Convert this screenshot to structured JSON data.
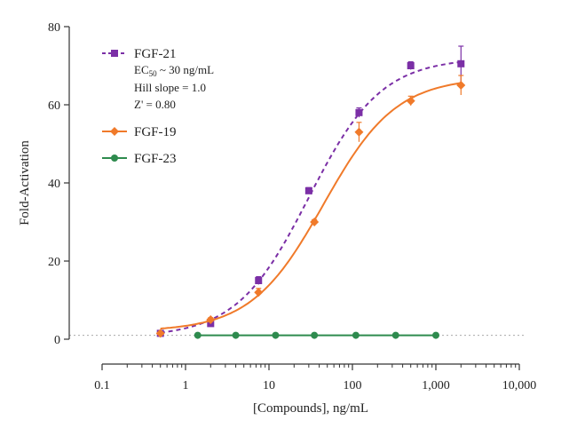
{
  "chart_data": {
    "type": "scatter",
    "xlabel": "[Compounds], ng/mL",
    "ylabel": "Fold-Activation",
    "xscale": "log",
    "xlim": [
      0.1,
      10000
    ],
    "ylim": [
      0,
      80
    ],
    "x_ticks": [
      0.1,
      1,
      10,
      100,
      1000,
      10000
    ],
    "x_tick_labels": [
      "0.1",
      "1",
      "10",
      "100",
      "1,000",
      "10,000"
    ],
    "y_ticks": [
      0,
      20,
      40,
      60,
      80
    ],
    "y_tick_labels": [
      "0",
      "20",
      "40",
      "60",
      "80"
    ],
    "grid": false,
    "baseline": 1,
    "legend_position": "top-left",
    "series": [
      {
        "name": "FGF-21",
        "color": "#7b2fa6",
        "marker": "square",
        "line_style": "dashed",
        "x": [
          0.5,
          2,
          7.5,
          30,
          120,
          500,
          2000
        ],
        "y": [
          1.5,
          4,
          15,
          38,
          58,
          70,
          70.5
        ],
        "err": [
          0,
          0,
          1,
          0.8,
          1.2,
          1,
          4.5
        ],
        "fit": {
          "bottom": 0.5,
          "top": 72,
          "ec50": 30,
          "hill": 1.0
        },
        "annotations": {
          "ec50_prefix": "EC",
          "ec50_sub": "50",
          "ec50_suffix": " ~ 30 ng/mL",
          "hill": "Hill slope = 1.0",
          "z": "Z' = 0.80"
        }
      },
      {
        "name": "FGF-19",
        "color": "#f07a2a",
        "marker": "diamond",
        "line_style": "solid",
        "x": [
          0.5,
          2,
          7.5,
          35,
          120,
          500,
          2000
        ],
        "y": [
          1.5,
          5,
          12,
          30,
          53,
          61,
          65
        ],
        "err": [
          0,
          0.5,
          1,
          0.6,
          2.5,
          1.2,
          2.5
        ],
        "fit": {
          "bottom": 2,
          "top": 67,
          "ec50": 45,
          "hill": 1.0
        }
      },
      {
        "name": "FGF-23",
        "color": "#2e8b4e",
        "marker": "circle",
        "line_style": "solid",
        "x": [
          1.4,
          4,
          12,
          35,
          110,
          330,
          1000
        ],
        "y": [
          1,
          1,
          1,
          1,
          1,
          1,
          1
        ],
        "err": [
          0,
          0,
          0,
          0,
          0,
          0,
          0
        ]
      }
    ]
  }
}
